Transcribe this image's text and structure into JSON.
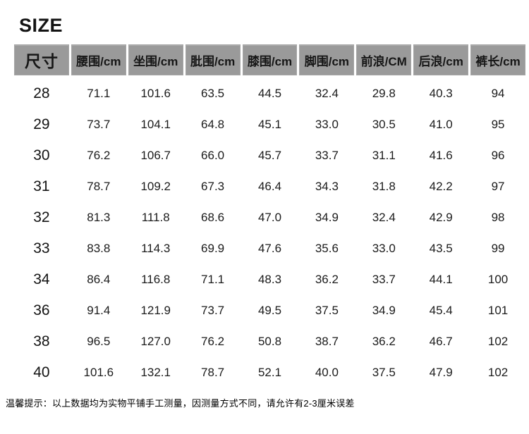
{
  "title": "SIZE",
  "table": {
    "headers": [
      "尺寸",
      "腰围/cm",
      "坐围/cm",
      "肶围/cm",
      "膝围/cm",
      "脚围/cm",
      "前浪/CM",
      "后浪/cm",
      "裤长/cm"
    ],
    "rows": [
      [
        "28",
        "71.1",
        "101.6",
        "63.5",
        "44.5",
        "32.4",
        "29.8",
        "40.3",
        "94"
      ],
      [
        "29",
        "73.7",
        "104.1",
        "64.8",
        "45.1",
        "33.0",
        "30.5",
        "41.0",
        "95"
      ],
      [
        "30",
        "76.2",
        "106.7",
        "66.0",
        "45.7",
        "33.7",
        "31.1",
        "41.6",
        "96"
      ],
      [
        "31",
        "78.7",
        "109.2",
        "67.3",
        "46.4",
        "34.3",
        "31.8",
        "42.2",
        "97"
      ],
      [
        "32",
        "81.3",
        "111.8",
        "68.6",
        "47.0",
        "34.9",
        "32.4",
        "42.9",
        "98"
      ],
      [
        "33",
        "83.8",
        "114.3",
        "69.9",
        "47.6",
        "35.6",
        "33.0",
        "43.5",
        "99"
      ],
      [
        "34",
        "86.4",
        "116.8",
        "71.1",
        "48.3",
        "36.2",
        "33.7",
        "44.1",
        "100"
      ],
      [
        "36",
        "91.4",
        "121.9",
        "73.7",
        "49.5",
        "37.5",
        "34.9",
        "45.4",
        "101"
      ],
      [
        "38",
        "96.5",
        "127.0",
        "76.2",
        "50.8",
        "38.7",
        "36.2",
        "46.7",
        "102"
      ],
      [
        "40",
        "101.6",
        "132.1",
        "78.7",
        "52.1",
        "40.0",
        "37.5",
        "47.9",
        "102"
      ]
    ]
  },
  "note": "温馨提示：以上数据均为实物平铺手工测量，因测量方式不同，请允许有2-3厘米误差",
  "colors": {
    "header_bg": "#9a9a9a",
    "text": "#1b1b1b"
  }
}
